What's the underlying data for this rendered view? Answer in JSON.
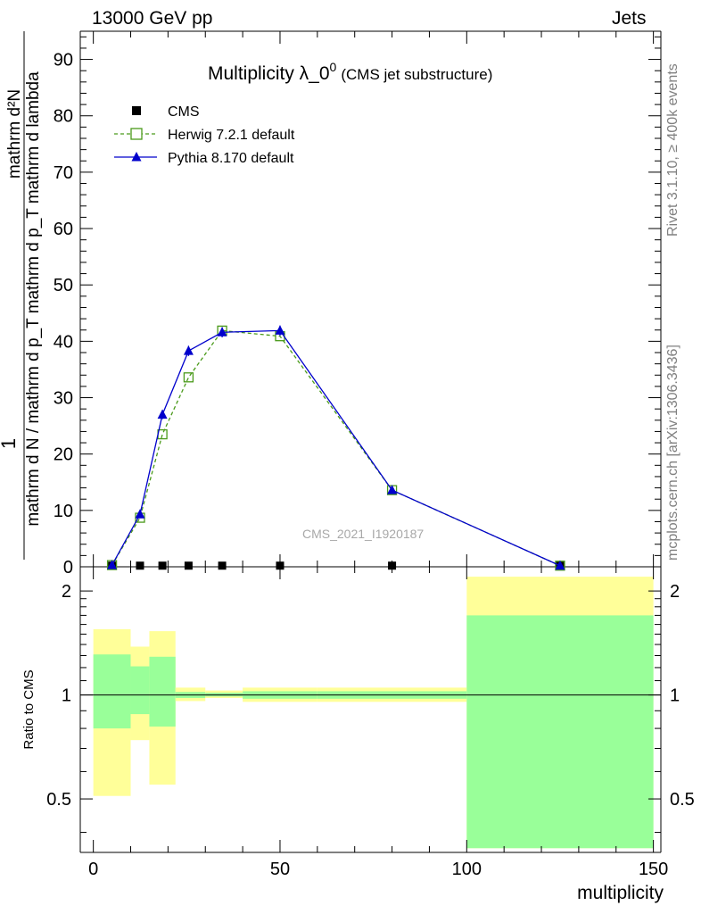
{
  "header": {
    "left": "13000 GeV pp",
    "right": "Jets"
  },
  "side_text": {
    "rivet": "Rivet 3.1.10, ≥ 400k events",
    "mcplots": "mcplots.cern.ch [arXiv:1306.3436]"
  },
  "chart_data": [
    {
      "type": "line",
      "title": "Multiplicity λ_0⁰",
      "title_main": "Multiplicity λ_0",
      "title_sup": "0",
      "subtitle": "(CMS jet substructure)",
      "ylabel_top": "1",
      "ylabel_bottom": "mathrm d N / mathrm d p_T mathrm d p_T mathrm d lambda",
      "ylabel_num": "mathrm d²N",
      "ylabel_den": "mathrm d N / mathrm d p_T mathrm d p_T mathrm d lambda",
      "watermark": "CMS_2021_I1920187",
      "ylim": [
        0,
        95
      ],
      "xlim": [
        -3.5,
        152
      ],
      "yticks": [
        0,
        10,
        20,
        30,
        40,
        50,
        60,
        70,
        80,
        90
      ],
      "legend_position": "top-left",
      "series": [
        {
          "name": "CMS",
          "marker": "square",
          "color": "#000000",
          "x": [
            5,
            12.5,
            18.5,
            25.5,
            34.5,
            50,
            80,
            125
          ],
          "y": [
            0.2,
            0.2,
            0.2,
            0.2,
            0.2,
            0.2,
            0.2,
            0.2
          ]
        },
        {
          "name": "Herwig 7.2.1 default",
          "marker": "open-square",
          "line": "dashed",
          "color": "#4a9a1a",
          "x": [
            5,
            12.5,
            18.5,
            25.5,
            34.5,
            50,
            80,
            125
          ],
          "y": [
            0.3,
            8.7,
            23.5,
            33.6,
            41.9,
            40.9,
            13.6,
            0.2
          ]
        },
        {
          "name": "Pythia 8.170 default",
          "marker": "triangle",
          "line": "solid",
          "color": "#0000cc",
          "x": [
            5,
            12.5,
            18.5,
            25.5,
            34.5,
            50,
            80,
            125
          ],
          "y": [
            0.3,
            9.3,
            27.0,
            38.3,
            41.6,
            41.9,
            13.6,
            0.2
          ],
          "yerr": [
            0.2,
            0.5,
            0.8,
            0.9,
            0.9,
            0.9,
            0.4,
            0.1
          ]
        }
      ]
    },
    {
      "type": "area",
      "ylabel": "Ratio to CMS",
      "xlabel": "multiplicity",
      "ylim": [
        0.35,
        2.35
      ],
      "log_y": true,
      "xlim": [
        -3.5,
        152
      ],
      "yticks": [
        0.5,
        1,
        2
      ],
      "xticks": [
        0,
        50,
        100,
        150
      ],
      "reference_line": 1,
      "bands": [
        {
          "x0": 0,
          "x1": 10,
          "green": [
            0.8,
            1.31
          ],
          "yellow": [
            0.51,
            1.55
          ]
        },
        {
          "x0": 10,
          "x1": 15,
          "green": [
            0.88,
            1.21
          ],
          "yellow": [
            0.74,
            1.38
          ]
        },
        {
          "x0": 15,
          "x1": 22,
          "green": [
            0.81,
            1.29
          ],
          "yellow": [
            0.55,
            1.53
          ]
        },
        {
          "x0": 22,
          "x1": 30,
          "green": [
            0.98,
            1.02
          ],
          "yellow": [
            0.96,
            1.05
          ]
        },
        {
          "x0": 30,
          "x1": 40,
          "green": [
            0.99,
            1.015
          ],
          "yellow": [
            0.98,
            1.03
          ]
        },
        {
          "x0": 40,
          "x1": 60,
          "green": [
            0.975,
            1.025
          ],
          "yellow": [
            0.955,
            1.05
          ]
        },
        {
          "x0": 60,
          "x1": 100,
          "green": [
            0.975,
            1.025
          ],
          "yellow": [
            0.955,
            1.05
          ]
        },
        {
          "x0": 100,
          "x1": 150,
          "green": [
            0.36,
            1.7
          ],
          "yellow": [
            0.36,
            2.2
          ]
        }
      ]
    }
  ]
}
